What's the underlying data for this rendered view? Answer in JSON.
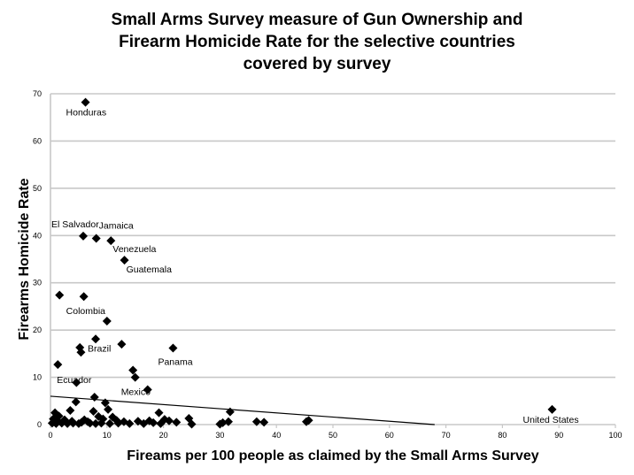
{
  "chart_data": {
    "type": "scatter",
    "title_lines": [
      "Small Arms Survey measure of Gun Ownership and",
      "Firearm Homicide Rate for the selective countries",
      "covered by survey"
    ],
    "xlabel": "Fireams per 100 people as claimed by the Small Arms Survey",
    "ylabel": "Firearms Homicide Rate",
    "xlim": [
      0,
      100
    ],
    "ylim": [
      0,
      70
    ],
    "xticks": [
      0,
      10,
      20,
      30,
      40,
      50,
      60,
      70,
      80,
      90,
      100
    ],
    "yticks": [
      0,
      10,
      20,
      30,
      40,
      50,
      60,
      70
    ],
    "grid": "horizontal",
    "legend": "none",
    "marker": "diamond",
    "trendline": {
      "x": [
        0,
        68
      ],
      "y": [
        6.0,
        0
      ]
    },
    "labeled_points": [
      {
        "label": "Honduras",
        "x": 6.2,
        "y": 68.2
      },
      {
        "label": "El Salvador",
        "x": 5.8,
        "y": 39.9
      },
      {
        "label": "Jamaica",
        "x": 8.1,
        "y": 39.4
      },
      {
        "label": "Venezuela",
        "x": 10.7,
        "y": 38.9
      },
      {
        "label": "Guatemala",
        "x": 13.1,
        "y": 34.8
      },
      {
        "label": "Colombia",
        "x": 5.9,
        "y": 27.1
      },
      {
        "label": "Brazil",
        "x": 8.0,
        "y": 18.1
      },
      {
        "label": "Panama",
        "x": 21.7,
        "y": 16.2
      },
      {
        "label": "Ecuador",
        "x": 1.3,
        "y": 12.7
      },
      {
        "label": "Mexico",
        "x": 15.0,
        "y": 10.0
      },
      {
        "label": "United States",
        "x": 88.8,
        "y": 3.2
      }
    ],
    "points": [
      {
        "x": 1.6,
        "y": 27.4
      },
      {
        "x": 10.0,
        "y": 21.9
      },
      {
        "x": 12.6,
        "y": 17.0
      },
      {
        "x": 5.2,
        "y": 16.3
      },
      {
        "x": 5.4,
        "y": 15.3
      },
      {
        "x": 14.6,
        "y": 11.5
      },
      {
        "x": 4.6,
        "y": 8.9
      },
      {
        "x": 17.2,
        "y": 7.4
      },
      {
        "x": 7.8,
        "y": 5.8
      },
      {
        "x": 4.5,
        "y": 4.8
      },
      {
        "x": 9.7,
        "y": 4.6
      },
      {
        "x": 3.5,
        "y": 3.0
      },
      {
        "x": 7.6,
        "y": 2.8
      },
      {
        "x": 10.2,
        "y": 3.2
      },
      {
        "x": 19.2,
        "y": 2.5
      },
      {
        "x": 31.8,
        "y": 2.7
      },
      {
        "x": 0.8,
        "y": 2.5
      },
      {
        "x": 1.5,
        "y": 1.8
      },
      {
        "x": 8.5,
        "y": 1.7
      },
      {
        "x": 11.0,
        "y": 1.6
      },
      {
        "x": 24.5,
        "y": 1.3
      },
      {
        "x": 0.5,
        "y": 1.2
      },
      {
        "x": 2.5,
        "y": 1.0
      },
      {
        "x": 6.0,
        "y": 1.0
      },
      {
        "x": 13.0,
        "y": 0.6
      },
      {
        "x": 15.5,
        "y": 0.7
      },
      {
        "x": 17.5,
        "y": 0.8
      },
      {
        "x": 21.0,
        "y": 0.8
      },
      {
        "x": 22.3,
        "y": 0.5
      },
      {
        "x": 30.5,
        "y": 0.4
      },
      {
        "x": 31.5,
        "y": 0.6
      },
      {
        "x": 36.5,
        "y": 0.6
      },
      {
        "x": 37.8,
        "y": 0.5
      },
      {
        "x": 45.3,
        "y": 0.6
      },
      {
        "x": 45.7,
        "y": 0.9
      },
      {
        "x": 0.3,
        "y": 0.3
      },
      {
        "x": 1.0,
        "y": 0.2
      },
      {
        "x": 2.0,
        "y": 0.3
      },
      {
        "x": 3.0,
        "y": 0.2
      },
      {
        "x": 4.0,
        "y": 0.3
      },
      {
        "x": 5.0,
        "y": 0.2
      },
      {
        "x": 7.0,
        "y": 0.3
      },
      {
        "x": 8.0,
        "y": 0.2
      },
      {
        "x": 9.0,
        "y": 0.3
      },
      {
        "x": 10.5,
        "y": 0.2
      },
      {
        "x": 12.0,
        "y": 0.3
      },
      {
        "x": 14.0,
        "y": 0.2
      },
      {
        "x": 16.5,
        "y": 0.2
      },
      {
        "x": 19.5,
        "y": 0.2
      },
      {
        "x": 25.0,
        "y": 0.1
      },
      {
        "x": 30.0,
        "y": 0.1
      },
      {
        "x": 0.6,
        "y": 0.6
      },
      {
        "x": 1.2,
        "y": 0.9
      },
      {
        "x": 3.8,
        "y": 0.7
      },
      {
        "x": 6.6,
        "y": 0.6
      },
      {
        "x": 11.7,
        "y": 0.9
      },
      {
        "x": 18.2,
        "y": 0.4
      },
      {
        "x": 20.2,
        "y": 1.1
      },
      {
        "x": 9.3,
        "y": 1.2
      },
      {
        "x": 5.5,
        "y": 0.5
      }
    ]
  }
}
